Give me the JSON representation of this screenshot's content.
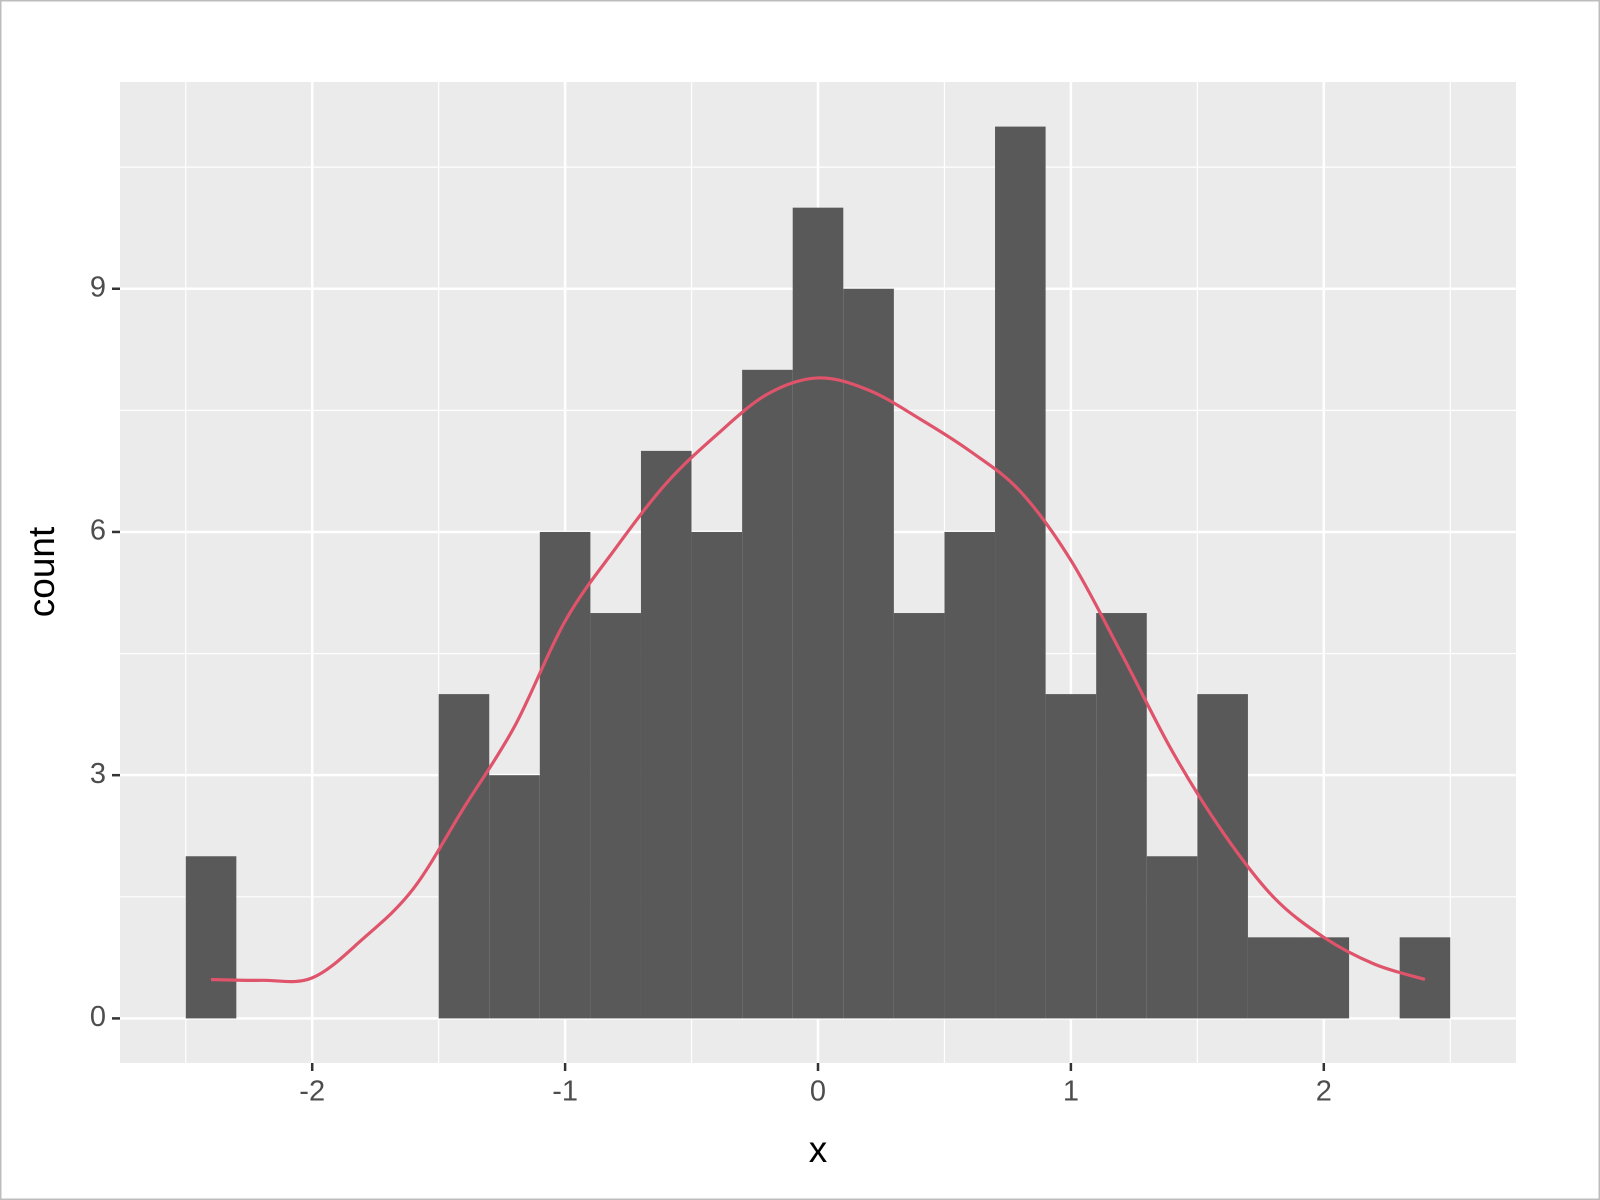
{
  "chart_data": {
    "type": "histogram",
    "bins": [
      -2.5,
      -2.3,
      -2.1,
      -1.9,
      -1.7,
      -1.5,
      -1.3,
      -1.1,
      -0.9,
      -0.7,
      -0.5,
      -0.3,
      -0.1,
      0.1,
      0.3,
      0.5,
      0.7,
      0.9,
      1.1,
      1.3,
      1.5,
      1.7,
      1.9,
      2.1,
      2.3,
      2.5
    ],
    "values": [
      2,
      0,
      0,
      0,
      0,
      4,
      3,
      6,
      5,
      7,
      6,
      8,
      10,
      9,
      5,
      6,
      11,
      4,
      5,
      2,
      4,
      1,
      1,
      0,
      1
    ],
    "color": "#595959",
    "density": {
      "color": "#df536b",
      "x": [
        -2.4,
        -2.2,
        -2.0,
        -1.8,
        -1.6,
        -1.4,
        -1.2,
        -1.0,
        -0.8,
        -0.6,
        -0.4,
        -0.2,
        0.0,
        0.2,
        0.4,
        0.6,
        0.8,
        1.0,
        1.2,
        1.4,
        1.6,
        1.8,
        2.0,
        2.2,
        2.4
      ],
      "values": [
        0.48,
        0.47,
        0.5,
        0.98,
        1.6,
        2.6,
        3.6,
        4.9,
        5.8,
        6.6,
        7.2,
        7.7,
        7.9,
        7.75,
        7.4,
        7.0,
        6.5,
        5.65,
        4.5,
        3.3,
        2.3,
        1.5,
        1.0,
        0.67,
        0.48
      ]
    },
    "x_label": "x",
    "y_label": "count",
    "xlim": [
      -2.76,
      2.76
    ],
    "ylim": [
      -0.55,
      11.55
    ],
    "xticks": [
      -2,
      -1,
      0,
      1,
      2
    ],
    "yticks": [
      0,
      3,
      6,
      9
    ],
    "grid": true
  }
}
